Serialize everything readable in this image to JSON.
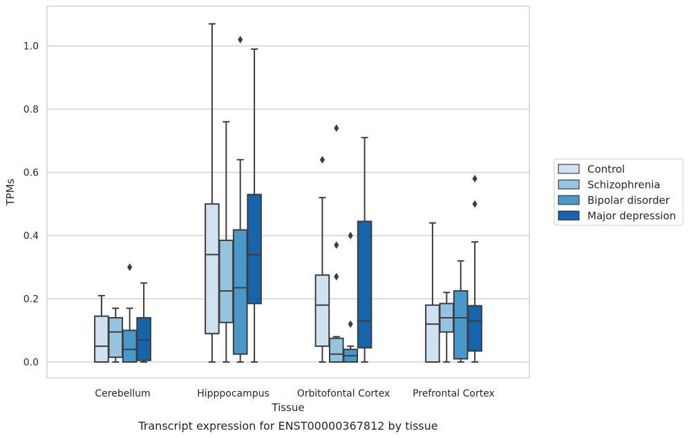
{
  "chart_data": {
    "type": "box",
    "xlabel": "Tissue",
    "ylabel": "TPMs",
    "caption": "Transcript expression for ENST00000367812 by tissue",
    "ylim": [
      -0.05,
      1.13
    ],
    "yticks": [
      "0.0",
      "0.2",
      "0.4",
      "0.6",
      "0.8",
      "1.0"
    ],
    "grid": "horizontal",
    "legend_position": "right",
    "categories": [
      "Cerebellum",
      "Hipppocampus",
      "Orbitofontal Cortex",
      "Prefrontal Cortex"
    ],
    "series": [
      {
        "name": "Control",
        "color": "#d0e1f2",
        "boxes": [
          {
            "min": 0.0,
            "q1": 0.0,
            "median": 0.05,
            "q3": 0.145,
            "max": 0.21,
            "outliers": []
          },
          {
            "min": 0.0,
            "q1": 0.09,
            "median": 0.34,
            "q3": 0.5,
            "max": 1.07,
            "outliers": []
          },
          {
            "min": 0.0,
            "q1": 0.05,
            "median": 0.18,
            "q3": 0.275,
            "max": 0.52,
            "outliers": [
              0.64
            ]
          },
          {
            "min": 0.0,
            "q1": 0.0,
            "median": 0.12,
            "q3": 0.18,
            "max": 0.44,
            "outliers": []
          }
        ]
      },
      {
        "name": "Schizophrenia",
        "color": "#94c4df",
        "boxes": [
          {
            "min": 0.0,
            "q1": 0.015,
            "median": 0.095,
            "q3": 0.14,
            "max": 0.17,
            "outliers": []
          },
          {
            "min": 0.0,
            "q1": 0.125,
            "median": 0.225,
            "q3": 0.385,
            "max": 0.76,
            "outliers": []
          },
          {
            "min": 0.0,
            "q1": 0.0,
            "median": 0.025,
            "q3": 0.075,
            "max": 0.08,
            "outliers": [
              0.27,
              0.37,
              0.74
            ]
          },
          {
            "min": 0.0,
            "q1": 0.095,
            "median": 0.14,
            "q3": 0.185,
            "max": 0.22,
            "outliers": []
          }
        ]
      },
      {
        "name": "Bipolar disorder",
        "color": "#4a98c9",
        "boxes": [
          {
            "min": 0.0,
            "q1": 0.0,
            "median": 0.04,
            "q3": 0.1,
            "max": 0.17,
            "outliers": [
              0.3
            ]
          },
          {
            "min": 0.0,
            "q1": 0.025,
            "median": 0.235,
            "q3": 0.418,
            "max": 0.64,
            "outliers": [
              1.02
            ]
          },
          {
            "min": 0.0,
            "q1": 0.0,
            "median": 0.02,
            "q3": 0.04,
            "max": 0.05,
            "outliers": [
              0.12,
              0.4
            ]
          },
          {
            "min": 0.0,
            "q1": 0.01,
            "median": 0.14,
            "q3": 0.225,
            "max": 0.32,
            "outliers": []
          }
        ]
      },
      {
        "name": "Major depression",
        "color": "#1764ab",
        "boxes": [
          {
            "min": 0.0,
            "q1": 0.005,
            "median": 0.07,
            "q3": 0.14,
            "max": 0.25,
            "outliers": []
          },
          {
            "min": 0.0,
            "q1": 0.185,
            "median": 0.34,
            "q3": 0.53,
            "max": 0.99,
            "outliers": []
          },
          {
            "min": 0.0,
            "q1": 0.045,
            "median": 0.13,
            "q3": 0.445,
            "max": 0.71,
            "outliers": []
          },
          {
            "min": 0.0,
            "q1": 0.035,
            "median": 0.13,
            "q3": 0.178,
            "max": 0.38,
            "outliers": [
              0.5,
              0.58
            ]
          }
        ]
      }
    ]
  }
}
